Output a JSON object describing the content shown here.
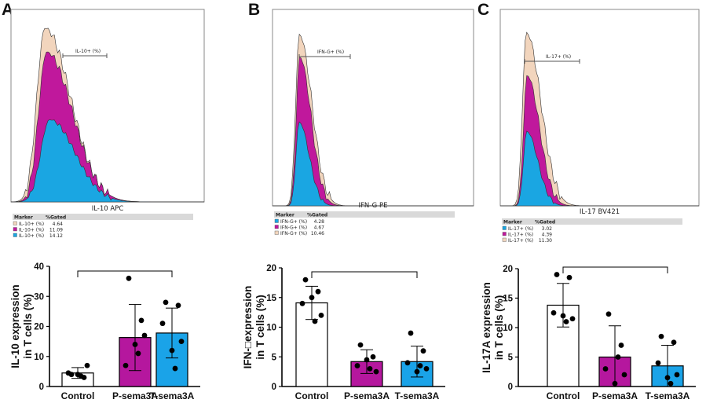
{
  "chart_data": [
    {
      "panel_letter": "A",
      "type": "histogram",
      "xlabel": "IL-10 APC",
      "gate_label": "IL-10+ (%)",
      "legend_headers": [
        "Marker",
        "%Gated"
      ],
      "legend": [
        {
          "marker": "IL-10+ (%)",
          "gated": "4.64",
          "color": "#f2d5bd"
        },
        {
          "marker": "IL-10+ (%)",
          "gated": "11.09",
          "color": "#c0189c"
        },
        {
          "marker": "IL-10+ (%)",
          "gated": "14.12",
          "color": "#1aa6e2"
        }
      ]
    },
    {
      "panel_letter": "B",
      "type": "histogram",
      "xlabel": "IFN-G PE",
      "gate_label": "IFN-G+ (%)",
      "legend_headers": [
        "Marker",
        "%Gated"
      ],
      "legend": [
        {
          "marker": "IFN-G+ (%)",
          "gated": "4.28",
          "color": "#1aa6e2"
        },
        {
          "marker": "IFN-G+ (%)",
          "gated": "4.67",
          "color": "#c0189c"
        },
        {
          "marker": "IFN-G+ (%)",
          "gated": "10.46",
          "color": "#f2d5bd"
        }
      ]
    },
    {
      "panel_letter": "C",
      "type": "histogram",
      "xlabel": "IL-17 BV421",
      "gate_label": "IL-17+ (%)",
      "legend_headers": [
        "Marker",
        "%Gated"
      ],
      "legend": [
        {
          "marker": "IL-17+ (%)",
          "gated": "3.02",
          "color": "#1aa6e2"
        },
        {
          "marker": "IL-17+ (%)",
          "gated": "4.39",
          "color": "#c0189c"
        },
        {
          "marker": "IL-17+ (%)",
          "gated": "11.30",
          "color": "#f2d5bd"
        }
      ]
    },
    {
      "type": "bar",
      "ylabel_line1": "IL-10 expression",
      "ylabel_line2": "in T cells (%)",
      "ylim": [
        0,
        40
      ],
      "yticks": [
        "0",
        "10",
        "20",
        "30",
        "40"
      ],
      "categories": [
        "Control",
        "P-sema3A",
        "T-sema3A"
      ],
      "colors": [
        "#ffffff",
        "#b5179e",
        "#1aa3e8"
      ],
      "means": [
        4.5,
        16.3,
        17.8
      ],
      "sd": [
        1.8,
        11.0,
        8.3
      ],
      "points": [
        [
          4.0,
          3.0,
          4.5,
          7.0,
          4.0,
          3.5
        ],
        [
          36.0,
          22.0,
          7.0,
          17.0,
          14.0,
          11.0
        ],
        [
          28.0,
          27.0,
          21.0,
          15.0,
          12.0,
          6.0
        ]
      ]
    },
    {
      "type": "bar",
      "ylabel_line1": "IFN-□expression",
      "ylabel_line2": "in T cells (%)",
      "ylim": [
        0,
        20
      ],
      "yticks": [
        "0",
        "5",
        "10",
        "15",
        "20"
      ],
      "categories": [
        "Control",
        "P-sema3A",
        "T-sema3A"
      ],
      "colors": [
        "#ffffff",
        "#b5179e",
        "#1aa3e8"
      ],
      "means": [
        14.1,
        4.2,
        4.2
      ],
      "sd": [
        2.8,
        2.0,
        2.6
      ],
      "points": [
        [
          18.0,
          16.0,
          14.0,
          12.0,
          15.0,
          11.0
        ],
        [
          7.0,
          5.0,
          3.5,
          2.5,
          4.5,
          3.0
        ],
        [
          9.0,
          6.0,
          4.0,
          3.0,
          2.5,
          3.5
        ]
      ]
    },
    {
      "type": "bar",
      "ylabel_line1": "IL-17A expression",
      "ylabel_line2": "in T cells (%)",
      "ylim": [
        0,
        20
      ],
      "yticks": [
        "0",
        "5",
        "10",
        "15",
        "20"
      ],
      "categories": [
        "Control",
        "P-sema3A",
        "T-sema3A"
      ],
      "colors": [
        "#ffffff",
        "#b5179e",
        "#1aa3e8"
      ],
      "means": [
        13.8,
        5.0,
        3.5
      ],
      "sd": [
        3.7,
        5.3,
        3.5
      ],
      "points": [
        [
          19.0,
          18.5,
          12.5,
          11.5,
          12.0,
          11.0
        ],
        [
          12.3,
          7.0,
          3.0,
          2.0,
          0.5,
          5.0
        ],
        [
          8.5,
          7.5,
          4.0,
          2.0,
          1.5,
          0.5
        ]
      ]
    }
  ]
}
